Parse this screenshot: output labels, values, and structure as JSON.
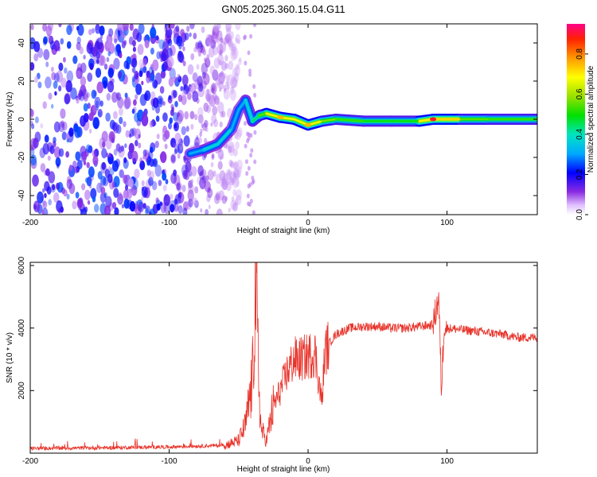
{
  "figure_title": "GN05.2025.360.15.04.G11",
  "colors": {
    "snr_line": "#e8332a",
    "frame": "#000000"
  },
  "chart_data": [
    {
      "type": "heatmap",
      "title": "GN05.2025.360.15.04.G11",
      "xlabel": "Height of straight line (km)",
      "ylabel": "Frequency (Hz)",
      "xlim": [
        -200,
        165
      ],
      "ylim": [
        -50,
        50
      ],
      "xticks": [
        -200,
        -100,
        0,
        100
      ],
      "yticks": [
        -40,
        -20,
        0,
        20,
        40
      ],
      "colorbar": {
        "label": "Normalized spectral amplitude",
        "range": [
          0,
          0.95
        ],
        "ticks": [
          0.0,
          0.2,
          0.4,
          0.6,
          0.8
        ]
      },
      "noise_region_x": [
        -200,
        -60
      ],
      "ridge": [
        {
          "x": -85,
          "y": -18,
          "a": 0.3
        },
        {
          "x": -75,
          "y": -16,
          "a": 0.35
        },
        {
          "x": -65,
          "y": -13,
          "a": 0.4
        },
        {
          "x": -55,
          "y": -5,
          "a": 0.35
        },
        {
          "x": -50,
          "y": 5,
          "a": 0.3
        },
        {
          "x": -45,
          "y": 10,
          "a": 0.35
        },
        {
          "x": -40,
          "y": -1,
          "a": 0.4
        },
        {
          "x": -35,
          "y": 2,
          "a": 0.5
        },
        {
          "x": -30,
          "y": 3,
          "a": 0.6
        },
        {
          "x": -20,
          "y": 1,
          "a": 0.75
        },
        {
          "x": -10,
          "y": 0,
          "a": 0.6
        },
        {
          "x": 0,
          "y": -3,
          "a": 0.75
        },
        {
          "x": 10,
          "y": -1,
          "a": 0.6
        },
        {
          "x": 20,
          "y": 0,
          "a": 0.55
        },
        {
          "x": 40,
          "y": -1,
          "a": 0.5
        },
        {
          "x": 60,
          "y": -1,
          "a": 0.5
        },
        {
          "x": 80,
          "y": -1,
          "a": 0.5
        },
        {
          "x": 90,
          "y": 0,
          "a": 0.9
        },
        {
          "x": 110,
          "y": 0,
          "a": 0.55
        },
        {
          "x": 130,
          "y": 0,
          "a": 0.55
        },
        {
          "x": 165,
          "y": 0,
          "a": 0.5
        }
      ]
    },
    {
      "type": "line",
      "xlabel": "Height of straight line (km)",
      "ylabel": "SNR (10 * v/v)",
      "xlim": [
        -200,
        165
      ],
      "ylim": [
        0,
        6100
      ],
      "xticks": [
        -200,
        -100,
        0,
        100
      ],
      "yticks": [
        2000,
        4000,
        6000
      ],
      "series": [
        {
          "name": "SNR",
          "x": [
            -200,
            -150,
            -100,
            -60,
            -50,
            -45,
            -40,
            -38,
            -36,
            -34,
            -30,
            -25,
            -20,
            -15,
            -10,
            -5,
            0,
            5,
            10,
            12,
            15,
            20,
            30,
            40,
            50,
            60,
            70,
            80,
            90,
            94,
            96,
            98,
            100,
            110,
            120,
            130,
            140,
            150,
            165
          ],
          "y": [
            150,
            170,
            200,
            250,
            400,
            900,
            2300,
            5800,
            3000,
            800,
            400,
            1500,
            2000,
            2600,
            3000,
            3000,
            3100,
            3200,
            1600,
            3200,
            3500,
            3800,
            4000,
            4050,
            4050,
            4000,
            4000,
            4050,
            4100,
            5000,
            2000,
            4200,
            4000,
            3950,
            3900,
            3850,
            3800,
            3700,
            3700
          ]
        }
      ]
    }
  ]
}
